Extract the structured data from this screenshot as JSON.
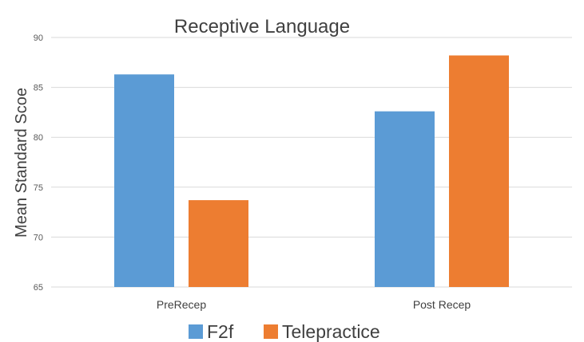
{
  "chart_data": {
    "type": "bar",
    "title": "Receptive Language",
    "xlabel": "",
    "ylabel": "Mean Standard Scoe",
    "categories": [
      "PreRecep",
      "Post Recep"
    ],
    "series": [
      {
        "name": "F2f",
        "values": [
          86.3,
          82.6
        ],
        "color": "#5b9bd5"
      },
      {
        "name": "Telepractice",
        "values": [
          73.7,
          88.2
        ],
        "color": "#ed7d31"
      }
    ],
    "ylim": [
      65,
      90
    ],
    "yticks": [
      65,
      70,
      75,
      80,
      85,
      90
    ],
    "grid": true,
    "legend_position": "bottom"
  }
}
